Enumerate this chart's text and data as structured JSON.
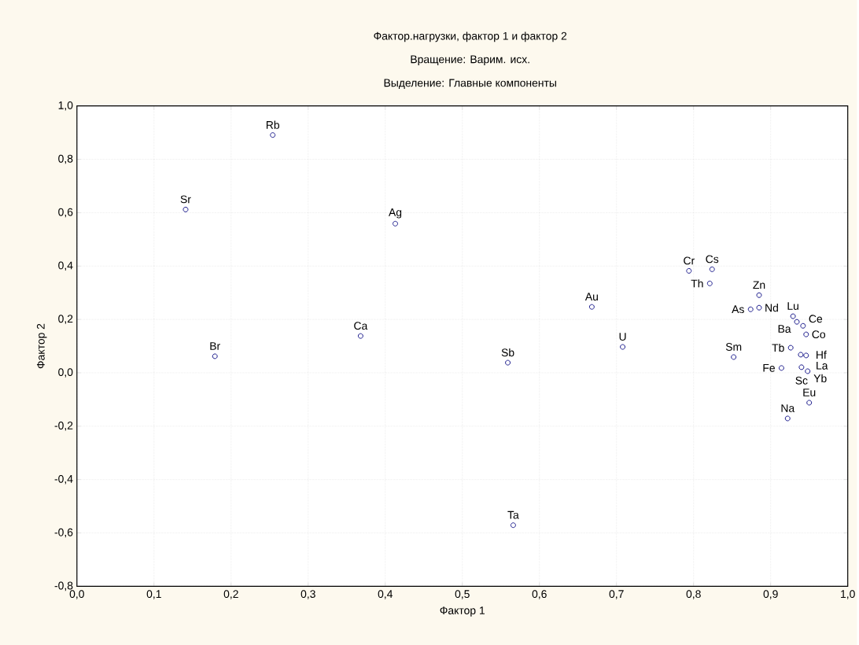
{
  "chart_data": {
    "type": "scatter",
    "title": "Фактор.нагрузки, фактор 1 и фактор   2",
    "subtitle": "Вращение: Варим. исх.",
    "annotations": [
      "Выделение: Главные компоненты"
    ],
    "xlabel": "Фактор 1",
    "ylabel": "Фактор 2",
    "xlim": [
      0,
      1
    ],
    "ylim": [
      -0.8,
      1
    ],
    "xticks": [
      {
        "value": 0,
        "label": "0,0"
      },
      {
        "value": 0.1,
        "label": "0,1"
      },
      {
        "value": 0.2,
        "label": "0,2"
      },
      {
        "value": 0.3,
        "label": "0,3"
      },
      {
        "value": 0.4,
        "label": "0,4"
      },
      {
        "value": 0.5,
        "label": "0,5"
      },
      {
        "value": 0.6,
        "label": "0,6"
      },
      {
        "value": 0.7,
        "label": "0,7"
      },
      {
        "value": 0.8,
        "label": "0,8"
      },
      {
        "value": 0.9,
        "label": "0,9"
      },
      {
        "value": 1,
        "label": "1,0"
      }
    ],
    "yticks": [
      {
        "value": -0.8,
        "label": "-0,8"
      },
      {
        "value": -0.6,
        "label": "-0,6"
      },
      {
        "value": -0.4,
        "label": "-0,4"
      },
      {
        "value": -0.2,
        "label": "-0,2"
      },
      {
        "value": 0,
        "label": "0,0"
      },
      {
        "value": 0.2,
        "label": "0,2"
      },
      {
        "value": 0.4,
        "label": "0,4"
      },
      {
        "value": 0.6,
        "label": "0,6"
      },
      {
        "value": 0.8,
        "label": "0,8"
      },
      {
        "value": 1,
        "label": "1,0"
      }
    ],
    "grid": true,
    "marker": "circle",
    "series": [
      {
        "color": "#1c1c8c",
        "x": [
          0.254,
          0.141,
          0.413,
          0.368,
          0.179,
          0.559,
          0.566,
          0.668,
          0.708,
          0.794,
          0.824,
          0.821,
          0.885,
          0.874,
          0.885,
          0.852,
          0.914,
          0.922,
          0.95,
          0.929,
          0.934,
          0.942,
          0.946,
          0.926,
          0.939,
          0.946,
          0.94,
          0.948
        ],
        "values": [
          0.891,
          0.612,
          0.559,
          0.138,
          0.062,
          0.038,
          -0.571,
          0.247,
          0.097,
          0.382,
          0.388,
          0.335,
          0.291,
          0.238,
          0.244,
          0.059,
          0.018,
          -0.171,
          -0.112,
          0.212,
          0.191,
          0.176,
          0.144,
          0.094,
          0.068,
          0.065,
          0.021,
          0.006
        ],
        "value_labels": [
          "Rb",
          "Sr",
          "Ag",
          "Ca",
          "Br",
          "Sb",
          "Ta",
          "Au",
          "U",
          "Cr",
          "Cs",
          "Th",
          "Zn",
          "As",
          "Nd",
          "Sm",
          "Fe",
          "Na",
          "Eu",
          "Lu",
          "Ba",
          "Ce",
          "Co",
          "Tb",
          "Hf",
          "La",
          "Sc",
          "Yb"
        ]
      }
    ]
  }
}
